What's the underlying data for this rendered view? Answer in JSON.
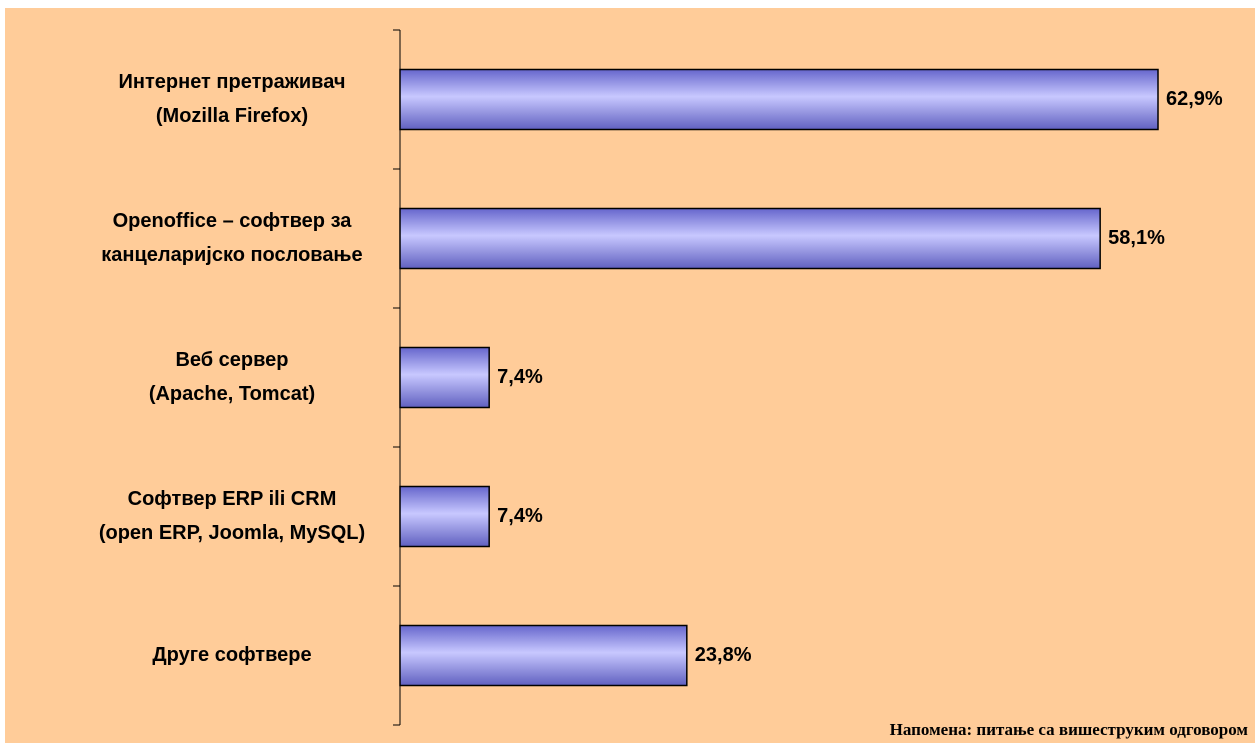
{
  "chart_data": {
    "type": "bar",
    "orientation": "horizontal",
    "categories": [
      [
        "Интернет претраживач",
        "(Mozilla Firefox)"
      ],
      [
        "Openoffice – софтвер за",
        "канцеларијско пословање"
      ],
      [
        "Веб сервер",
        "(Apache, Tomcat)"
      ],
      [
        "Софтвер ERP ili CRM",
        "(open ERP, Joomla, MySQL)"
      ],
      [
        "Друге софтвере"
      ]
    ],
    "values": [
      62.9,
      58.1,
      7.4,
      7.4,
      23.8
    ],
    "value_labels": [
      "62,9%",
      "58,1%",
      "7,4%",
      "7,4%",
      "23,8%"
    ],
    "color": "#9999ff",
    "note": "Напомена: питање са вишеструким одговором"
  }
}
